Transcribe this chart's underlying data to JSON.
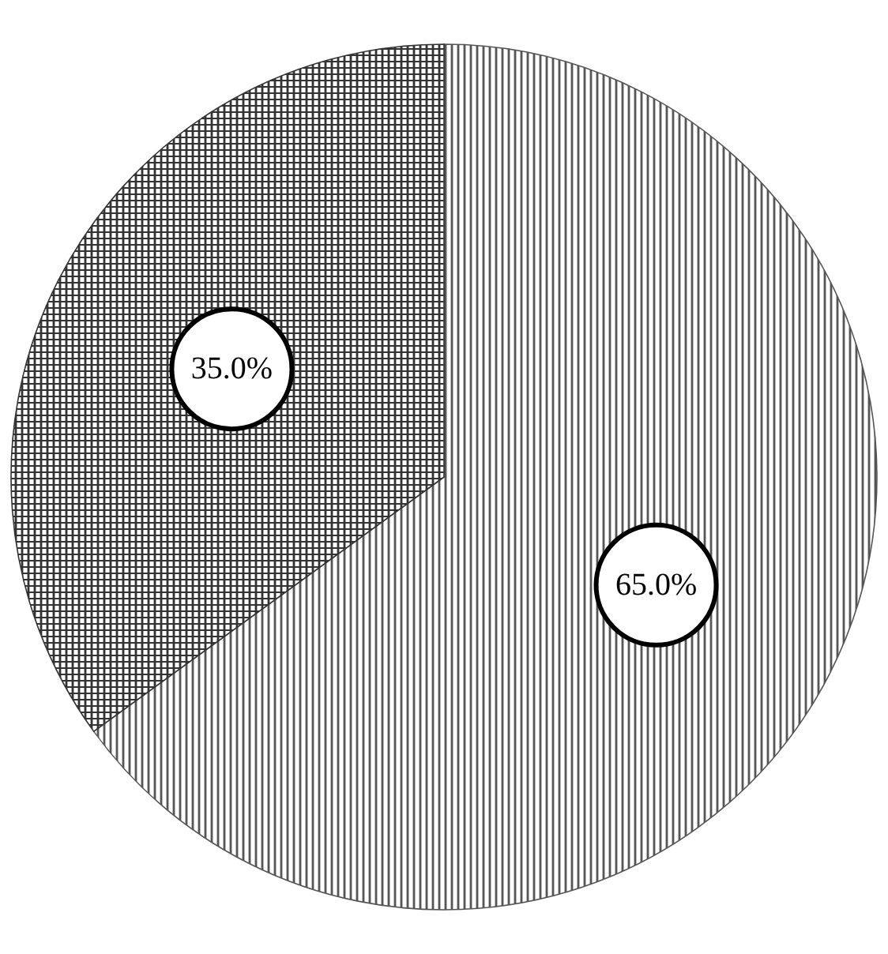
{
  "chart_data": {
    "type": "pie",
    "categories": [
      null,
      null
    ],
    "values": [
      65,
      35
    ],
    "colors": [
      "#555555",
      "#333333"
    ],
    "value_labels": [
      "65.0%",
      "35.0%"
    ]
  }
}
